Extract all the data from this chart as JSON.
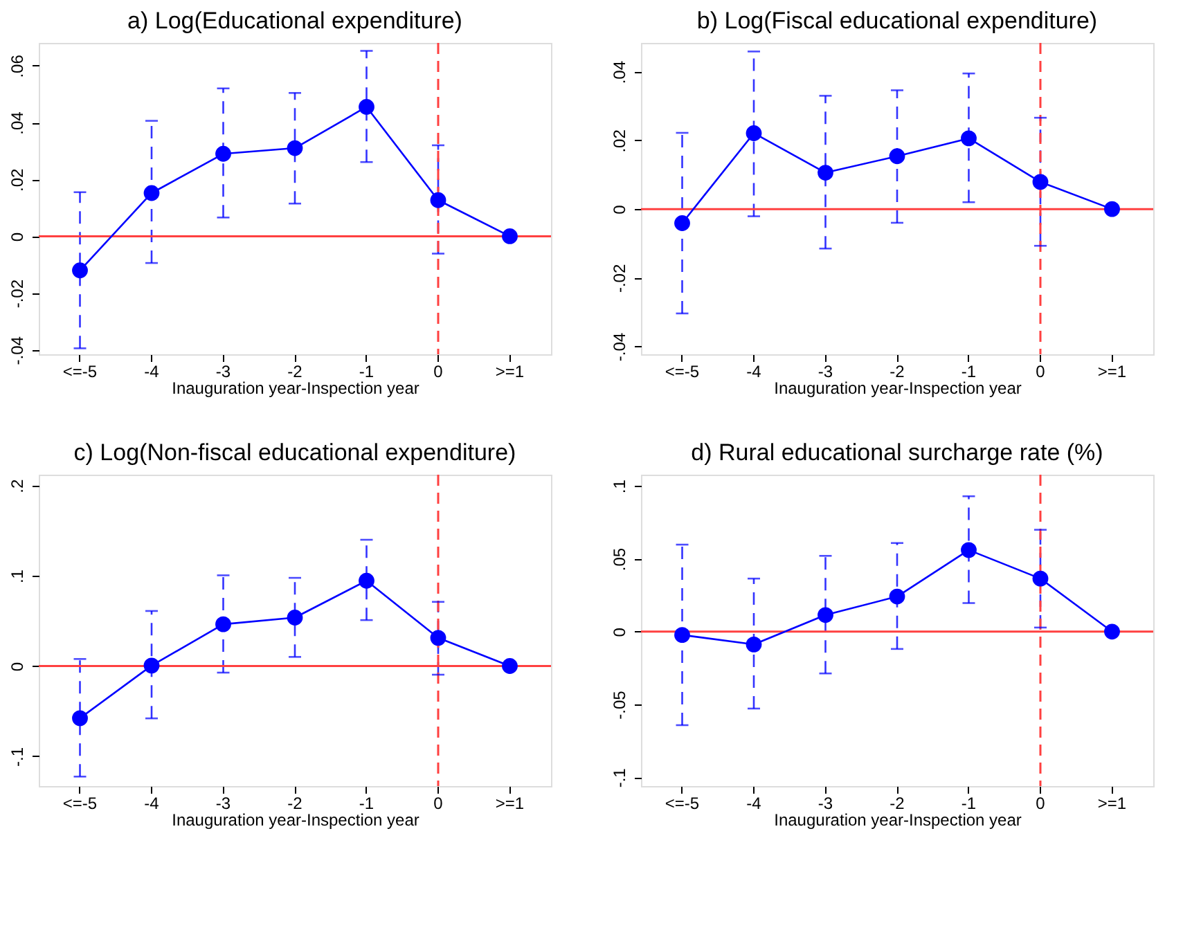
{
  "chart_data": [
    {
      "type": "line",
      "title": "a) Log(Educational expenditure)",
      "xlabel": "Inauguration year-Inspection year",
      "categories": [
        "<=-5",
        "-4",
        "-3",
        "-2",
        "-1",
        "0",
        ">=1"
      ],
      "series": [
        {
          "color": "#0000ff",
          "values": [
            -0.012,
            0.0152,
            0.029,
            0.031,
            0.0455,
            0.0127,
            0
          ],
          "errors": [
            [
              -0.0394,
              0.0155
            ],
            [
              -0.0094,
              0.0406
            ],
            [
              0.0066,
              0.052
            ],
            [
              0.0115,
              0.0504
            ],
            [
              0.0261,
              0.0652
            ],
            [
              -0.0061,
              0.032
            ],
            null
          ]
        }
      ],
      "ylim": [
        -0.0415,
        0.068
      ],
      "yticks": [
        {
          "value": -0.04,
          "label": "-.04"
        },
        {
          "value": -0.02,
          "label": "-.02"
        },
        0,
        {
          "value": 0.02,
          "label": ".02"
        },
        {
          "value": 0.04,
          "label": ".04"
        },
        {
          "value": 0.06,
          "label": ".06"
        }
      ],
      "ref_lines": [
        {
          "axis": "y",
          "value": 0,
          "color": "#ff4040",
          "line_style": "solid"
        },
        {
          "axis": "x",
          "value": "0",
          "color": "#ff4040",
          "line_style": "dashed"
        }
      ],
      "marker": "circle",
      "line_style": "solid",
      "grid": false
    },
    {
      "type": "line",
      "title": "b) Log(Fiscal educational expenditure)",
      "xlabel": "Inauguration year-Inspection year",
      "categories": [
        "<=-5",
        "-4",
        "-3",
        "-2",
        "-1",
        "0",
        ">=1"
      ],
      "series": [
        {
          "color": "#0000ff",
          "values": [
            -0.0041,
            0.0221,
            0.0106,
            0.0154,
            0.0206,
            0.0079,
            0
          ],
          "errors": [
            [
              -0.0304,
              0.0222
            ],
            [
              -0.0021,
              0.0459
            ],
            [
              -0.0115,
              0.033
            ],
            [
              -0.004,
              0.0346
            ],
            [
              0.002,
              0.0395
            ],
            [
              -0.0107,
              0.0266
            ],
            null
          ]
        }
      ],
      "ylim": [
        -0.0423,
        0.0484
      ],
      "yticks": [
        {
          "value": -0.04,
          "label": "-.04"
        },
        {
          "value": -0.02,
          "label": "-.02"
        },
        0,
        {
          "value": 0.02,
          "label": ".02"
        },
        {
          "value": 0.04,
          "label": ".04"
        }
      ],
      "ref_lines": [
        {
          "axis": "y",
          "value": 0,
          "color": "#ff4040",
          "line_style": "solid"
        },
        {
          "axis": "x",
          "value": "0",
          "color": "#ff4040",
          "line_style": "dashed"
        }
      ],
      "marker": "circle",
      "line_style": "solid",
      "grid": false
    },
    {
      "type": "line",
      "title": "c) Log(Non-fiscal educational expenditure)",
      "xlabel": "Inauguration year-Inspection year",
      "categories": [
        "<=-5",
        "-4",
        "-3",
        "-2",
        "-1",
        "0",
        ">=1"
      ],
      "series": [
        {
          "color": "#0000ff",
          "values": [
            -0.0578,
            0.0005,
            0.0463,
            0.0537,
            0.0945,
            0.0312,
            0
          ],
          "errors": [
            [
              -0.1225,
              0.0078
            ],
            [
              -0.058,
              0.061
            ],
            [
              -0.0073,
              0.1005
            ],
            [
              0.0101,
              0.0977
            ],
            [
              0.0509,
              0.1399
            ],
            [
              -0.0096,
              0.0711
            ],
            null
          ]
        }
      ],
      "ylim": [
        -0.133,
        0.212
      ],
      "yticks": [
        {
          "value": -0.1,
          "label": "-.1"
        },
        0,
        {
          "value": 0.1,
          "label": ".1"
        },
        {
          "value": 0.2,
          "label": ".2"
        }
      ],
      "ref_lines": [
        {
          "axis": "y",
          "value": 0,
          "color": "#ff4040",
          "line_style": "solid"
        },
        {
          "axis": "x",
          "value": "0",
          "color": "#ff4040",
          "line_style": "dashed"
        }
      ],
      "marker": "circle",
      "line_style": "solid",
      "grid": false
    },
    {
      "type": "line",
      "title": "d) Rural educational surcharge rate (%)",
      "xlabel": "Inauguration year-Inspection year",
      "categories": [
        "<=-5",
        "-4",
        "-3",
        "-2",
        "-1",
        "0",
        ">=1"
      ],
      "series": [
        {
          "color": "#0000ff",
          "values": [
            -0.0023,
            -0.0088,
            0.0114,
            0.0241,
            0.056,
            0.0364,
            0
          ],
          "errors": [
            [
              -0.0642,
              0.0597
            ],
            [
              -0.0528,
              0.0364
            ],
            [
              -0.0287,
              0.052
            ],
            [
              -0.0119,
              0.0608
            ],
            [
              0.0196,
              0.0929
            ],
            [
              0.0028,
              0.0699
            ],
            null
          ]
        }
      ],
      "ylim": [
        -0.106,
        0.1077
      ],
      "yticks": [
        {
          "value": -0.1,
          "label": "-.1"
        },
        {
          "value": -0.05,
          "label": "-.05"
        },
        0,
        {
          "value": 0.05,
          "label": ".05"
        },
        {
          "value": 0.1,
          "label": ".1"
        }
      ],
      "ref_lines": [
        {
          "axis": "y",
          "value": 0,
          "color": "#ff4040",
          "line_style": "solid"
        },
        {
          "axis": "x",
          "value": "0",
          "color": "#ff4040",
          "line_style": "dashed"
        }
      ],
      "marker": "circle",
      "line_style": "solid",
      "grid": false
    }
  ]
}
